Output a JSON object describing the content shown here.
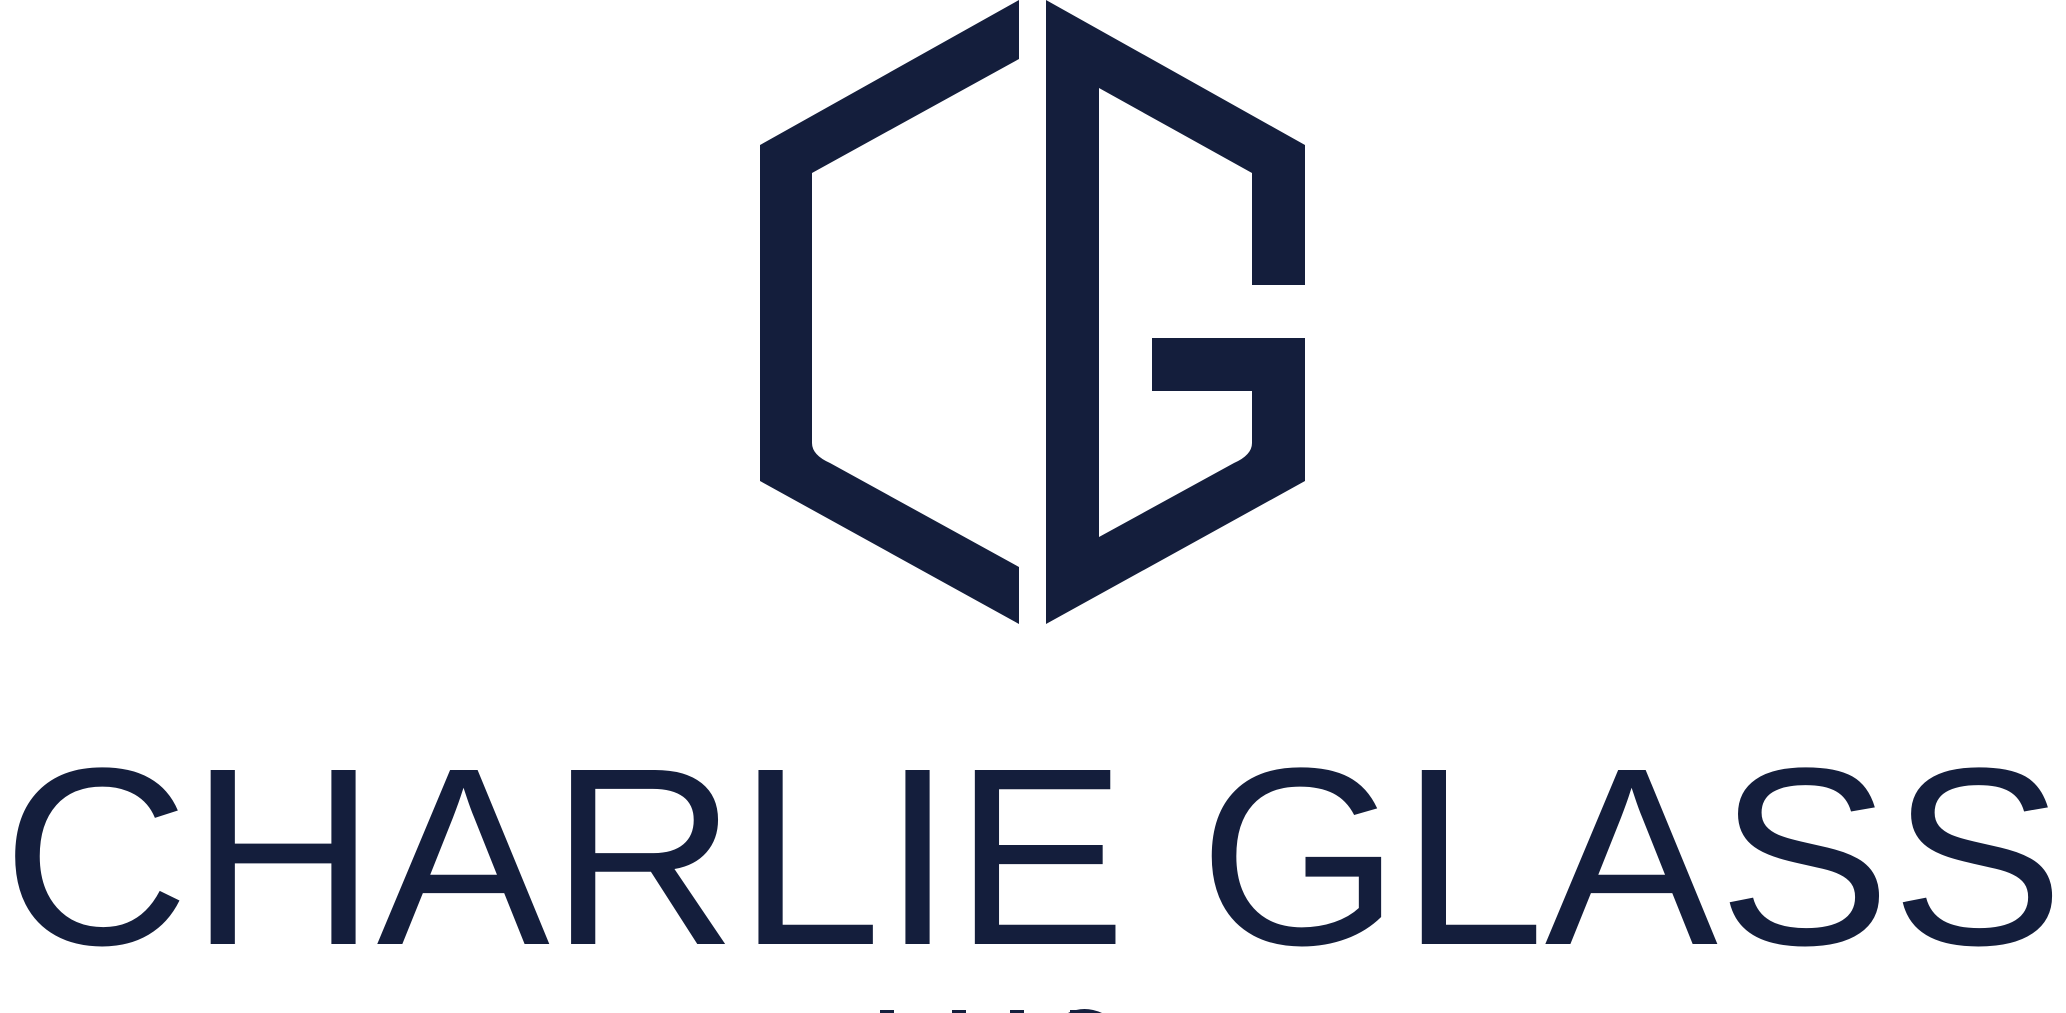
{
  "brand": {
    "name": "CHARLIE GLASS",
    "monogram": "CG",
    "logo_icon": "cg-hexagon-monogram-icon",
    "color": "#141e3c",
    "background": "#ffffff"
  }
}
